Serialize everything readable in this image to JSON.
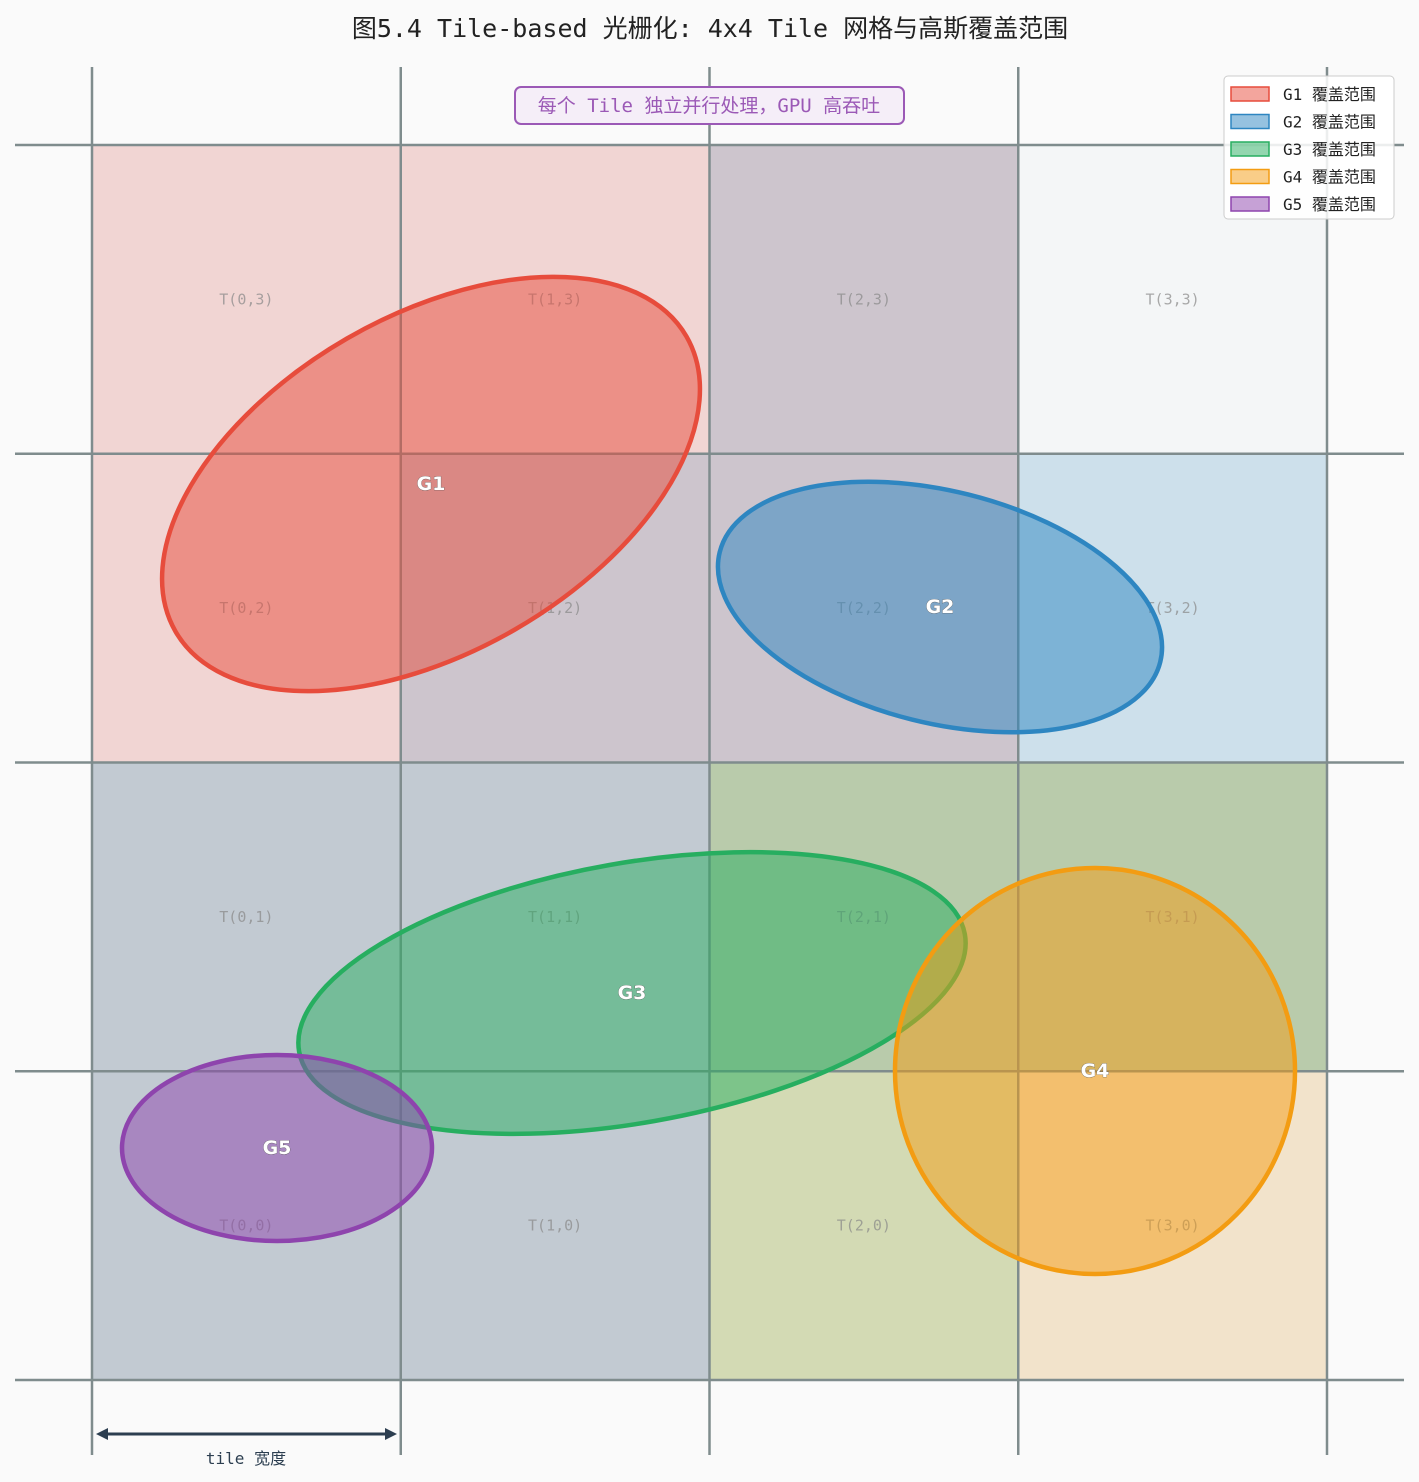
{
  "title": "图5.4  Tile-based 光栅化: 4x4 Tile 网格与高斯覆盖范围",
  "note": "每个 Tile 独立并行处理，GPU 高吞吐",
  "dimension_label": "tile 宽度",
  "colors": {
    "background": "#fafafa",
    "grid": "#7f8c8d",
    "G1": "#e74c3c",
    "G2": "#2e86c1",
    "G3": "#27ae60",
    "G4": "#f39c12",
    "G5": "#8e44ad",
    "tile_neutral": "#f4f6f7",
    "tile_empty": "#bdc3c7",
    "dim_arrow": "#2c3e50"
  },
  "legend": [
    {
      "key": "G1",
      "label": "G1 覆盖范围",
      "color": "#e74c3c"
    },
    {
      "key": "G2",
      "label": "G2 覆盖范围",
      "color": "#2e86c1"
    },
    {
      "key": "G3",
      "label": "G3 覆盖范围",
      "color": "#27ae60"
    },
    {
      "key": "G4",
      "label": "G4 覆盖范围",
      "color": "#f39c12"
    },
    {
      "key": "G5",
      "label": "G5 覆盖范围",
      "color": "#8e44ad"
    }
  ],
  "grid": {
    "cols": 4,
    "rows": 4
  },
  "tiles": [
    {
      "col": 0,
      "row": 3,
      "label": "T(0,3)",
      "covered_by": [
        "G1"
      ]
    },
    {
      "col": 1,
      "row": 3,
      "label": "T(1,3)",
      "covered_by": [
        "G1"
      ]
    },
    {
      "col": 2,
      "row": 3,
      "label": "T(2,3)",
      "covered_by": [
        "G1",
        "G2"
      ]
    },
    {
      "col": 3,
      "row": 3,
      "label": "T(3,3)",
      "covered_by": []
    },
    {
      "col": 0,
      "row": 2,
      "label": "T(0,2)",
      "covered_by": [
        "G1"
      ]
    },
    {
      "col": 1,
      "row": 2,
      "label": "T(1,2)",
      "covered_by": [
        "G1",
        "G3"
      ]
    },
    {
      "col": 2,
      "row": 2,
      "label": "T(2,2)",
      "covered_by": [
        "G1",
        "G2"
      ]
    },
    {
      "col": 3,
      "row": 2,
      "label": "T(3,2)",
      "covered_by": [
        "G2"
      ]
    },
    {
      "col": 0,
      "row": 1,
      "label": "T(0,1)",
      "covered_by": [
        "G3",
        "G5"
      ]
    },
    {
      "col": 1,
      "row": 1,
      "label": "T(1,1)",
      "covered_by": [
        "G3",
        "G5"
      ]
    },
    {
      "col": 2,
      "row": 1,
      "label": "T(2,1)",
      "covered_by": [
        "G3",
        "G4"
      ]
    },
    {
      "col": 3,
      "row": 1,
      "label": "T(3,1)",
      "covered_by": [
        "G3",
        "G4"
      ]
    },
    {
      "col": 0,
      "row": 0,
      "label": "T(0,0)",
      "covered_by": [
        "G3",
        "G5"
      ]
    },
    {
      "col": 1,
      "row": 0,
      "label": "T(1,0)",
      "covered_by": [
        "G3",
        "G5"
      ]
    },
    {
      "col": 2,
      "row": 0,
      "label": "T(2,0)",
      "covered_by": [
        "G3",
        "G4"
      ]
    },
    {
      "col": 3,
      "row": 0,
      "label": "T(3,0)",
      "covered_by": [
        "G4"
      ]
    }
  ],
  "gaussians": [
    {
      "key": "G1",
      "label": "G1",
      "color": "#e74c3c"
    },
    {
      "key": "G2",
      "label": "G2",
      "color": "#2e86c1"
    },
    {
      "key": "G3",
      "label": "G3",
      "color": "#27ae60"
    },
    {
      "key": "G4",
      "label": "G4",
      "color": "#f39c12"
    },
    {
      "key": "G5",
      "label": "G5",
      "color": "#8e44ad"
    }
  ]
}
